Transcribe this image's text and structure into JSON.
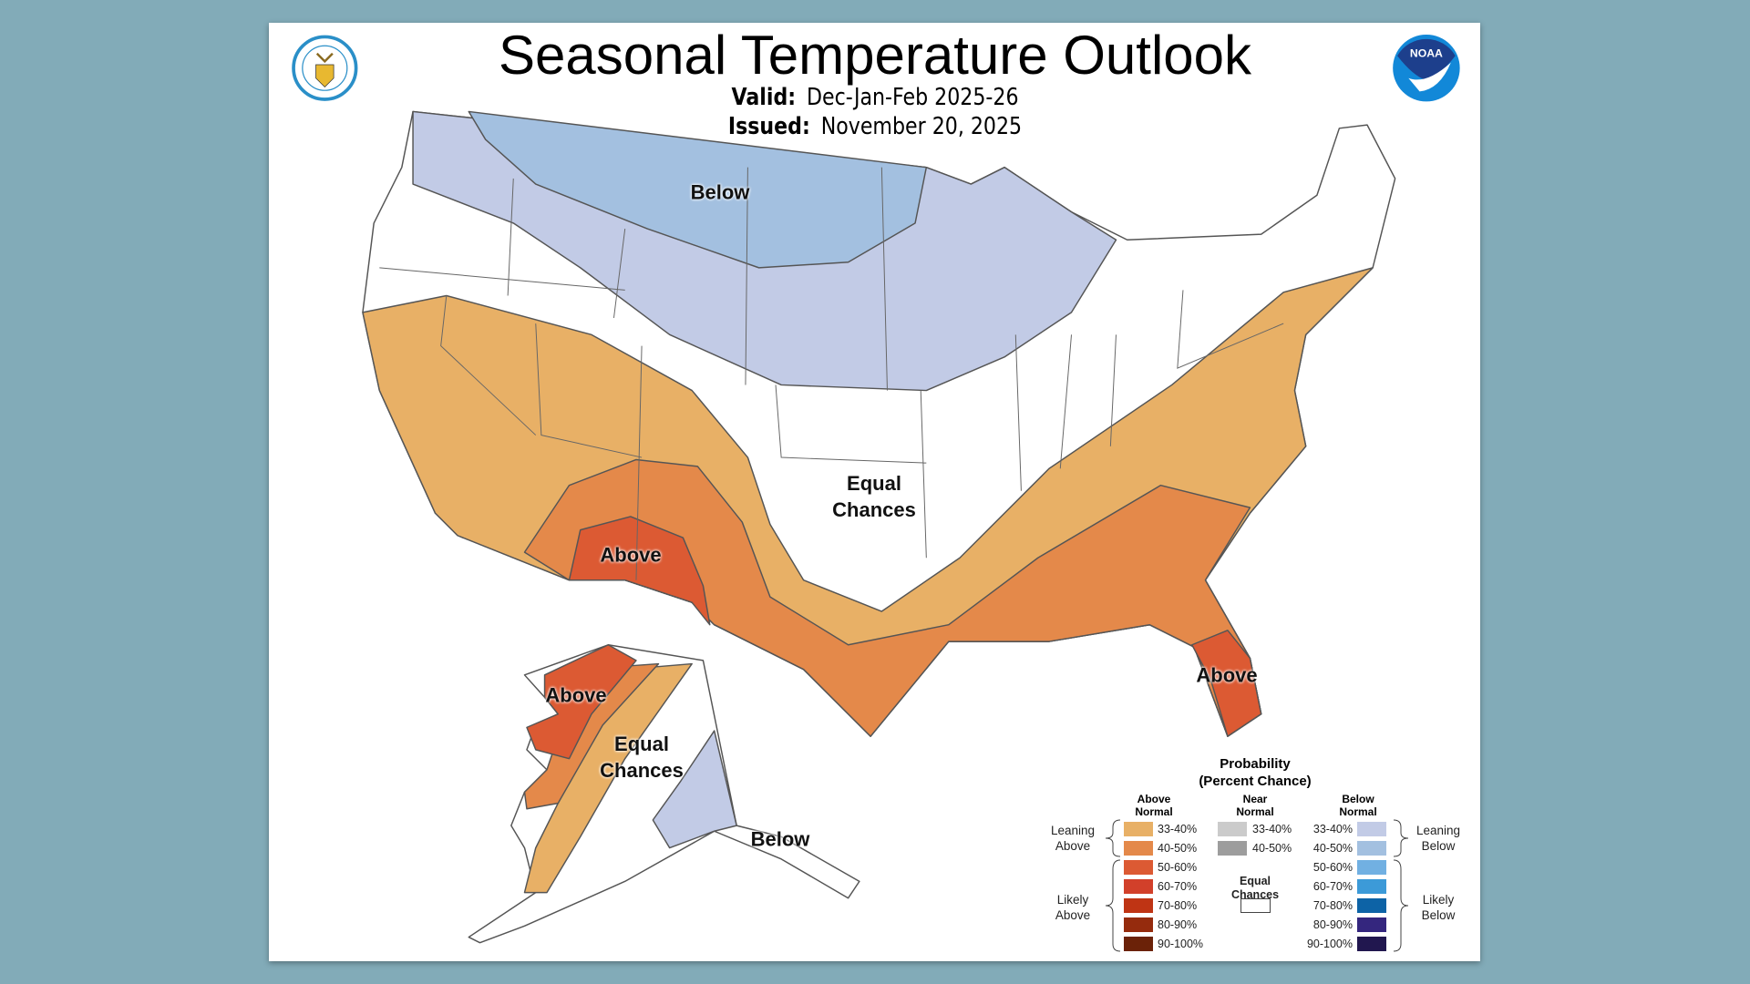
{
  "header": {
    "title": "Seasonal Temperature Outlook",
    "valid_label": "Valid:",
    "valid_value": "Dec-Jan-Feb 2025-26",
    "issued_label": "Issued:",
    "issued_value": "November 20, 2025",
    "left_logo": "Department of Commerce seal",
    "right_logo": "NOAA"
  },
  "map": {
    "labels": {
      "below_north": "Below",
      "equal_conus_1": "Equal",
      "equal_conus_2": "Chances",
      "above_sw": "Above",
      "above_fl": "Above",
      "above_ak": "Above",
      "equal_ak_1": "Equal",
      "equal_ak_2": "Chances",
      "below_ak": "Below"
    },
    "colors": {
      "above_33_40": "#e8b066",
      "above_40_50": "#e4894a",
      "above_50_60": "#dc5a33",
      "below_33_40": "#c2cbe6",
      "below_40_50": "#a3c0e0",
      "equal": "#ffffff"
    }
  },
  "legend": {
    "title": "Probability",
    "subtitle": "(Percent Chance)",
    "above_header_1": "Above",
    "above_header_2": "Normal",
    "near_header_1": "Near",
    "near_header_2": "Normal",
    "below_header_1": "Below",
    "below_header_2": "Normal",
    "leaning_above_1": "Leaning",
    "leaning_above_2": "Above",
    "likely_above_1": "Likely",
    "likely_above_2": "Above",
    "leaning_below_1": "Leaning",
    "leaning_below_2": "Below",
    "likely_below_1": "Likely",
    "likely_below_2": "Below",
    "equal_1": "Equal",
    "equal_2": "Chances",
    "above": [
      {
        "label": "33-40%",
        "color": "#e8b066"
      },
      {
        "label": "40-50%",
        "color": "#e4894a"
      },
      {
        "label": "50-60%",
        "color": "#dc5a33"
      },
      {
        "label": "60-70%",
        "color": "#d2402a"
      },
      {
        "label": "70-80%",
        "color": "#bf3414"
      },
      {
        "label": "80-90%",
        "color": "#952b0d"
      },
      {
        "label": "90-100%",
        "color": "#6b2208"
      }
    ],
    "near": [
      {
        "label": "33-40%",
        "color": "#cbcbcb"
      },
      {
        "label": "40-50%",
        "color": "#9d9d9d"
      }
    ],
    "below": [
      {
        "label": "33-40%",
        "color": "#c2cbe6"
      },
      {
        "label": "40-50%",
        "color": "#a3c0e0"
      },
      {
        "label": "50-60%",
        "color": "#71b0e2"
      },
      {
        "label": "60-70%",
        "color": "#3c9ad8"
      },
      {
        "label": "70-80%",
        "color": "#0d63a6"
      },
      {
        "label": "80-90%",
        "color": "#34267e"
      },
      {
        "label": "90-100%",
        "color": "#21174f"
      }
    ]
  }
}
